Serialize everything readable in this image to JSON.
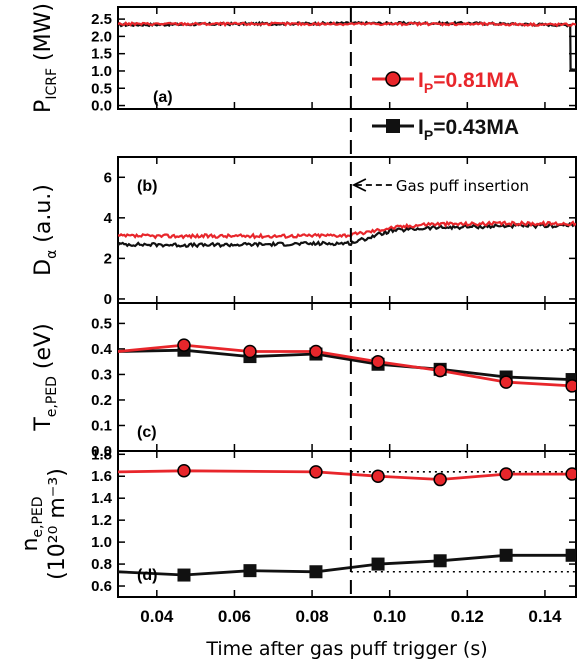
{
  "colors": {
    "red": "#e8262b",
    "black": "#111111",
    "marker_fill_red": "#e8262b"
  },
  "x_axis": {
    "label": "Time after gas puff trigger (s)",
    "ticks": [
      "0.04",
      "0.06",
      "0.08",
      "0.10",
      "0.12",
      "0.14"
    ],
    "range": [
      0.03,
      0.148
    ]
  },
  "legend": {
    "entries": [
      {
        "pre": "I",
        "sub": "P",
        "post": "=0.81MA",
        "color": "#e8262b",
        "marker": "circle"
      },
      {
        "pre": "I",
        "sub": "P",
        "post": "=0.43MA",
        "color": "#111111",
        "marker": "square"
      }
    ]
  },
  "annotation": "Gas puff insertion",
  "chart_data": [
    {
      "type": "line",
      "panel_label": "(a)",
      "ylabel": {
        "main": "P",
        "sub": "ICRF",
        "unit": " (MW)"
      },
      "ylim": [
        -0.1,
        2.85
      ],
      "yticks": [
        "0.0",
        "0.5",
        "1.0",
        "1.5",
        "2.0",
        "2.5"
      ],
      "series": [
        {
          "name": "IP=0.81MA",
          "color": "#e8262b",
          "x": [
            0.03,
            0.06,
            0.09,
            0.12,
            0.1455,
            0.148
          ],
          "y": [
            2.36,
            2.36,
            2.36,
            2.36,
            2.34,
            2.34
          ]
        },
        {
          "name": "IP=0.43MA",
          "color": "#111111",
          "x": [
            0.03,
            0.06,
            0.09,
            0.12,
            0.145,
            0.1465,
            0.1466,
            0.148
          ],
          "y": [
            2.33,
            2.36,
            2.38,
            2.38,
            2.33,
            2.33,
            1.05,
            1.05
          ]
        }
      ]
    },
    {
      "type": "line",
      "panel_label": "(b)",
      "ylabel": {
        "main": "D",
        "sub": "α",
        "unit": " (a.u.)"
      },
      "ylim": [
        -0.2,
        7
      ],
      "yticks": [
        "0",
        "2",
        "4",
        "6"
      ],
      "series": [
        {
          "name": "IP=0.81MA",
          "color": "#e8262b",
          "x": [
            0.03,
            0.05,
            0.07,
            0.09,
            0.1,
            0.11,
            0.12,
            0.13,
            0.14,
            0.148
          ],
          "y": [
            3.1,
            3.1,
            3.1,
            3.15,
            3.5,
            3.7,
            3.7,
            3.72,
            3.72,
            3.72
          ]
        },
        {
          "name": "IP=0.43MA",
          "color": "#111111",
          "x": [
            0.03,
            0.05,
            0.07,
            0.09,
            0.1,
            0.11,
            0.12,
            0.13,
            0.14,
            0.148
          ],
          "y": [
            2.7,
            2.65,
            2.7,
            2.75,
            3.35,
            3.5,
            3.55,
            3.6,
            3.6,
            3.65
          ]
        }
      ]
    },
    {
      "type": "line",
      "panel_label": "(c)",
      "ylabel": {
        "main": "T",
        "sub": "e,PED",
        "unit": " (eV)"
      },
      "ylim": [
        0,
        0.58
      ],
      "yticks": [
        "0.0",
        "0.1",
        "0.2",
        "0.3",
        "0.4",
        "0.5"
      ],
      "ref_line": 0.395,
      "series": [
        {
          "name": "IP=0.81MA",
          "color": "#e8262b",
          "marker": "circle",
          "x": [
            0.03,
            0.047,
            0.064,
            0.081,
            0.097,
            0.113,
            0.13,
            0.147
          ],
          "y": [
            0.39,
            0.415,
            0.39,
            0.39,
            0.35,
            0.315,
            0.27,
            0.255
          ]
        },
        {
          "name": "IP=0.43MA",
          "color": "#111111",
          "marker": "square",
          "x": [
            0.03,
            0.047,
            0.064,
            0.081,
            0.097,
            0.113,
            0.13,
            0.147
          ],
          "y": [
            0.39,
            0.395,
            0.37,
            0.38,
            0.34,
            0.32,
            0.29,
            0.28
          ]
        }
      ]
    },
    {
      "type": "line",
      "panel_label": "(d)",
      "ylabel": {
        "main": "n",
        "sub": "e,PED",
        "line2": "(10²⁰ m⁻³)"
      },
      "ylim": [
        0.5,
        1.83
      ],
      "yticks": [
        "0.6",
        "0.8",
        "1.0",
        "1.2",
        "1.4",
        "1.6",
        "1.8"
      ],
      "ref_lines": [
        1.64,
        0.73
      ],
      "series": [
        {
          "name": "IP=0.81MA",
          "color": "#e8262b",
          "marker": "circle",
          "x": [
            0.03,
            0.047,
            0.081,
            0.097,
            0.113,
            0.13,
            0.147
          ],
          "y": [
            1.64,
            1.65,
            1.64,
            1.6,
            1.57,
            1.62,
            1.62
          ]
        },
        {
          "name": "IP=0.43MA",
          "color": "#111111",
          "marker": "square",
          "x": [
            0.03,
            0.047,
            0.064,
            0.081,
            0.097,
            0.113,
            0.13,
            0.147
          ],
          "y": [
            0.73,
            0.7,
            0.74,
            0.73,
            0.8,
            0.83,
            0.88,
            0.88
          ]
        }
      ]
    }
  ]
}
